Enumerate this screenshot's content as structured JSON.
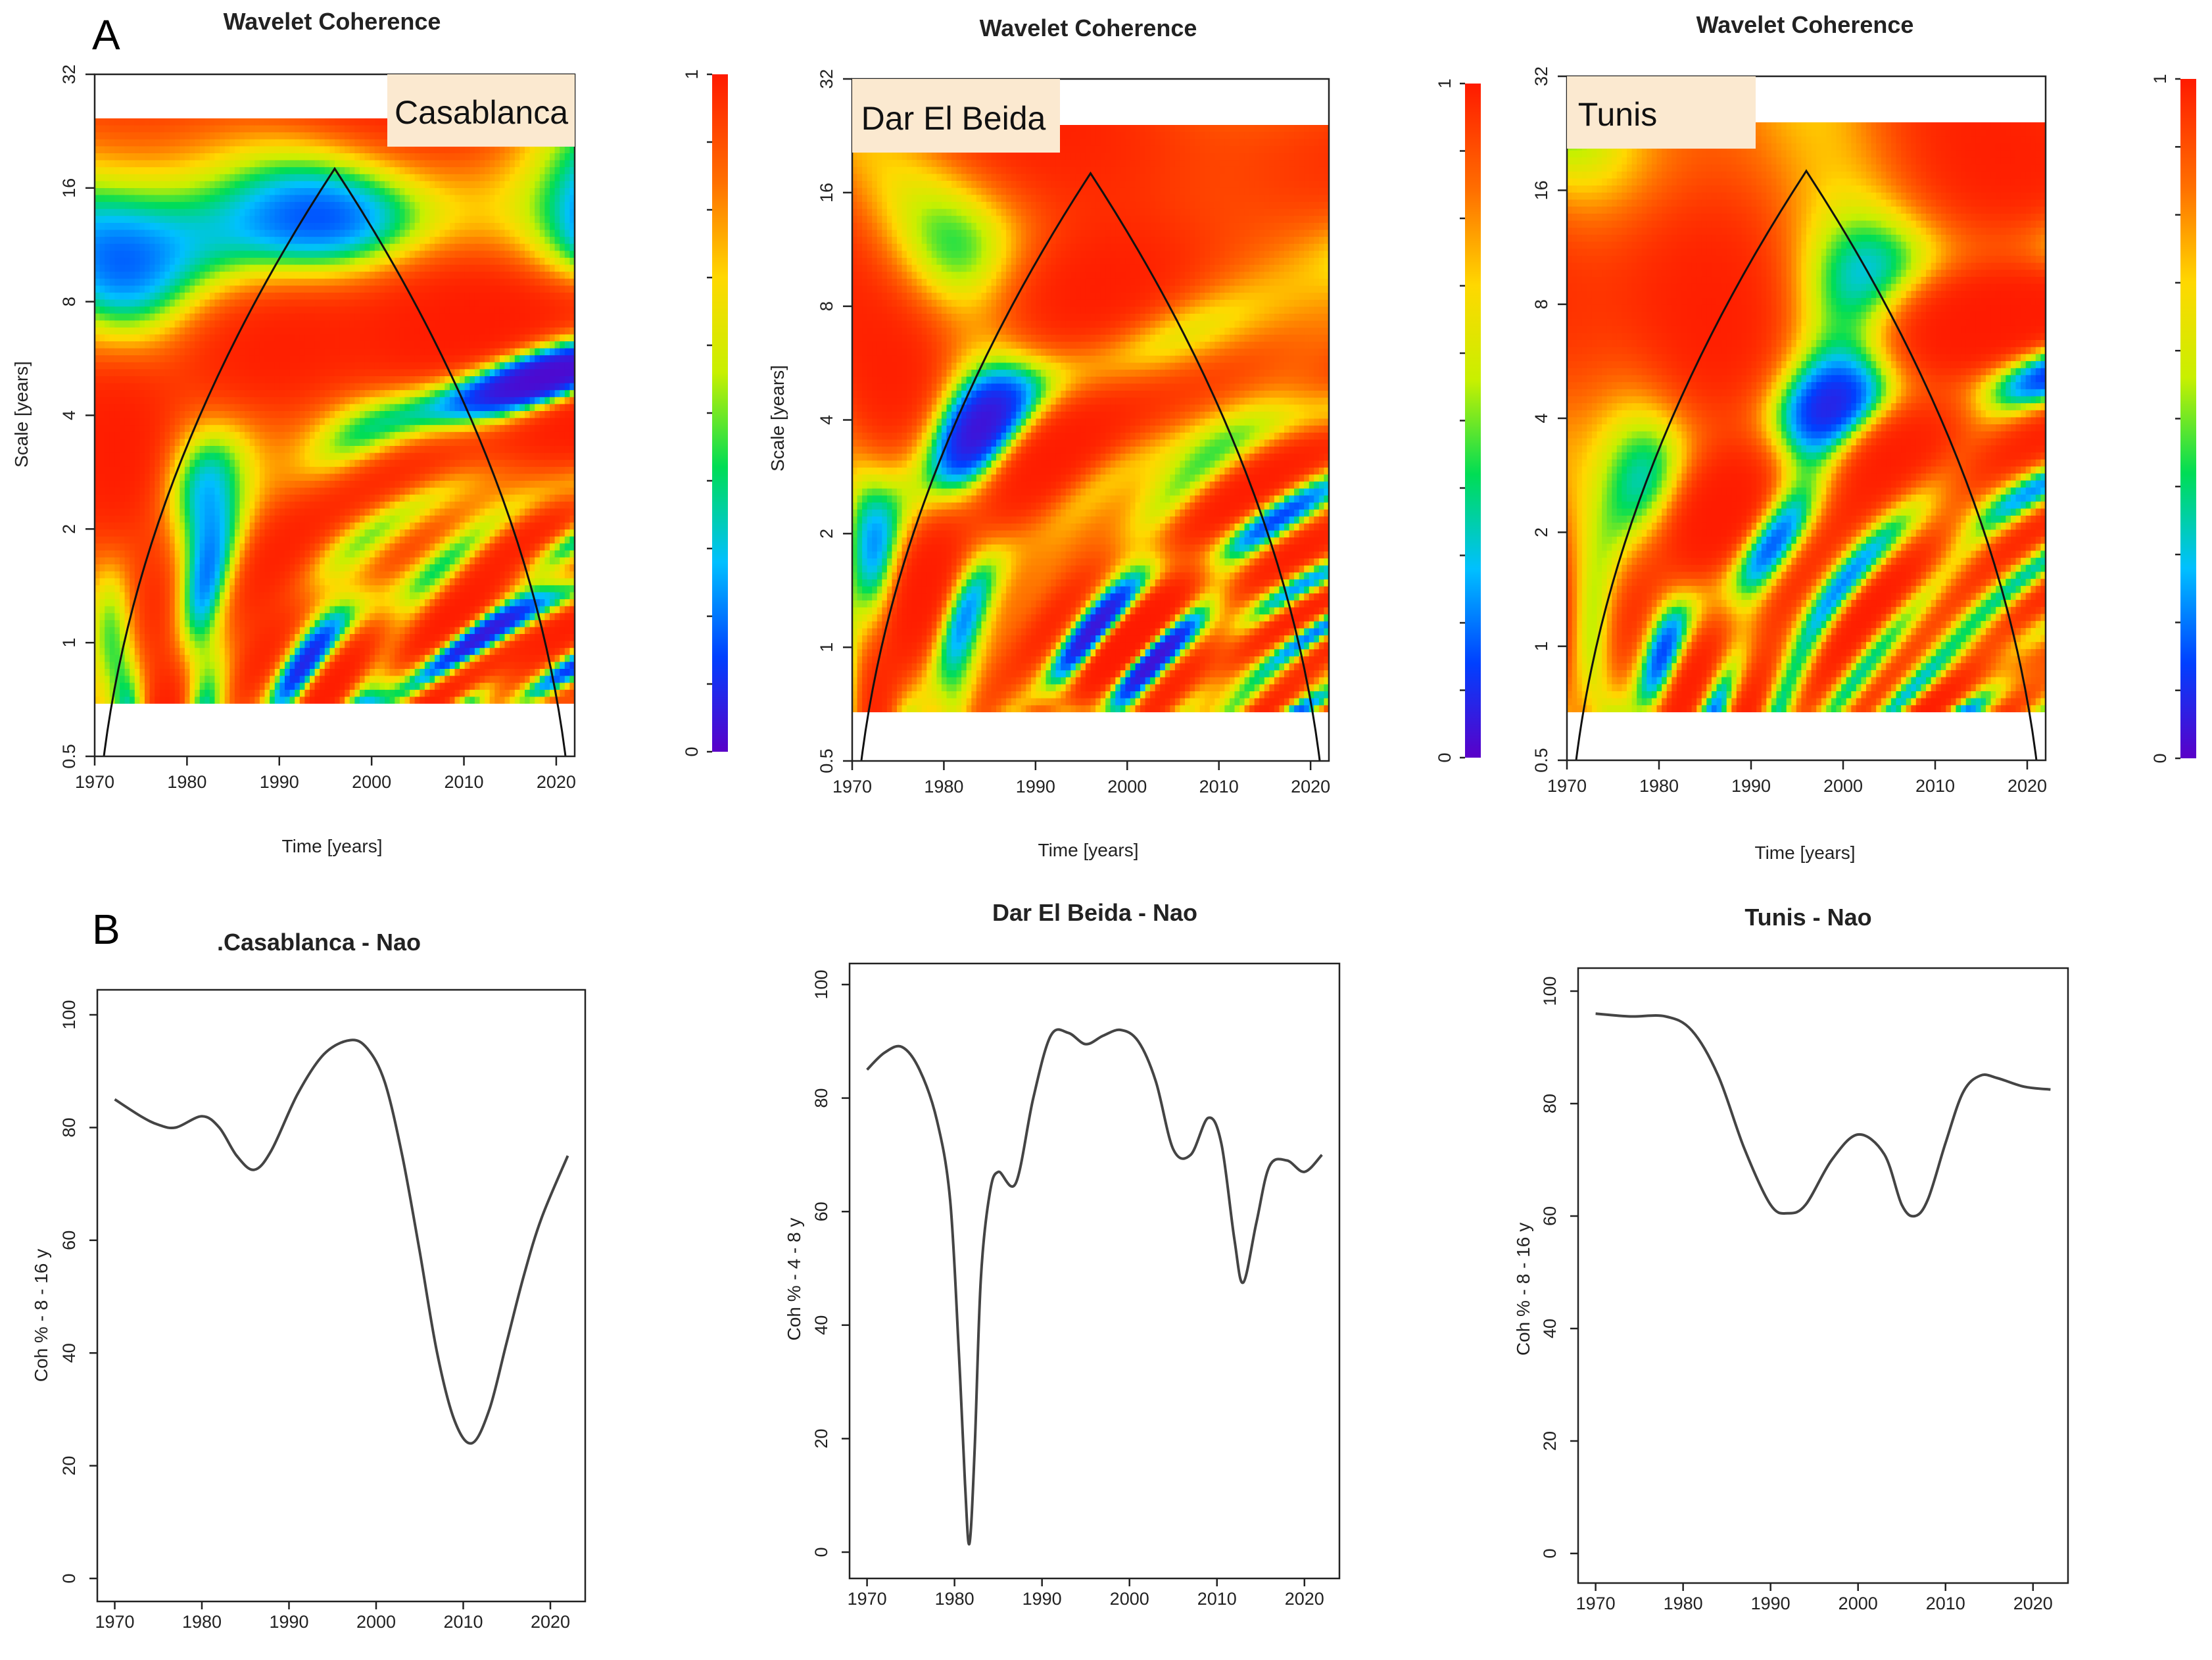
{
  "panel_labels": {
    "a": "A",
    "b": "B"
  },
  "colorscale": [
    "#5a00c8",
    "#0040ff",
    "#00c0ff",
    "#00dd55",
    "#c8f000",
    "#ffd800",
    "#ff7000",
    "#ff1a00"
  ],
  "chart_data": [
    {
      "type": "heatmap",
      "id": "wc1",
      "title": "Wavelet Coherence",
      "station": "Casablanca",
      "xlabel": "Time [years]",
      "ylabel": "Scale [years]",
      "xlim": [
        1970,
        2022
      ],
      "ylim_log2": [
        -1,
        5
      ],
      "x_ticks": [
        1970,
        1980,
        1990,
        2000,
        2010,
        2020
      ],
      "y_ticks": [
        "0.5",
        "1",
        "2",
        "4",
        "8",
        "16",
        "32"
      ],
      "colorbar": {
        "min": 0,
        "max": 1,
        "tick_labels": [
          "0",
          "1"
        ]
      },
      "coi_peak_year": 1996,
      "coi_peak_scale": 18
    },
    {
      "type": "heatmap",
      "id": "wc2",
      "title": "Wavelet Coherence",
      "station": "Dar El Beida",
      "xlabel": "Time [years]",
      "ylabel": "Scale [years]",
      "xlim": [
        1970,
        2022
      ],
      "ylim_log2": [
        -1,
        5
      ],
      "x_ticks": [
        1970,
        1980,
        1990,
        2000,
        2010,
        2020
      ],
      "y_ticks": [
        "0.5",
        "1",
        "2",
        "4",
        "8",
        "16",
        "32"
      ],
      "colorbar": {
        "min": 0,
        "max": 1,
        "tick_labels": [
          "0",
          "1"
        ]
      },
      "coi_peak_year": 1996,
      "coi_peak_scale": 18
    },
    {
      "type": "heatmap",
      "id": "wc3",
      "title": "Wavelet Coherence",
      "station": "Tunis",
      "xlabel": "Time [years]",
      "ylabel": "",
      "xlim": [
        1970,
        2022
      ],
      "ylim_log2": [
        -1,
        5
      ],
      "x_ticks": [
        1970,
        1980,
        1990,
        2000,
        2010,
        2020
      ],
      "y_ticks": [
        "0.5",
        "1",
        "2",
        "4",
        "8",
        "16",
        "32"
      ],
      "colorbar": {
        "min": 0,
        "max": 1,
        "tick_labels": [
          "0",
          "1"
        ]
      },
      "coi_peak_year": 1996,
      "coi_peak_scale": 18
    },
    {
      "type": "line",
      "id": "ln1",
      "title": ".Casablanca - Nao",
      "xlabel": "",
      "ylabel": "Coh % - 8 - 16 y",
      "xlim": [
        1968,
        2024
      ],
      "ylim": [
        0,
        100
      ],
      "x_ticks": [
        1970,
        1980,
        1990,
        2000,
        2010,
        2020
      ],
      "y_ticks": [
        0,
        20,
        40,
        60,
        80,
        100
      ],
      "x": [
        1970,
        1973,
        1975,
        1977,
        1980,
        1982,
        1984,
        1986,
        1988,
        1991,
        1994,
        1997,
        1999,
        2001,
        2003,
        2005,
        2007,
        2009,
        2011,
        2013,
        2015,
        2017,
        2019,
        2022
      ],
      "y": [
        85,
        82,
        80.5,
        80,
        82,
        80,
        75,
        72.5,
        76,
        86,
        93,
        95.5,
        94,
        88,
        75,
        58,
        40,
        28,
        24,
        30,
        42,
        54,
        64,
        75
      ]
    },
    {
      "type": "line",
      "id": "ln2",
      "title": "Dar El Beida - Nao",
      "xlabel": "",
      "ylabel": "Coh % - 4 - 8 y",
      "xlim": [
        1968,
        2024
      ],
      "ylim": [
        0,
        100
      ],
      "x_ticks": [
        1970,
        1980,
        1990,
        2000,
        2010,
        2020
      ],
      "y_ticks": [
        0,
        20,
        40,
        60,
        80,
        100
      ],
      "x": [
        1970,
        1972,
        1974,
        1976,
        1978,
        1979.5,
        1980.5,
        1981.2,
        1981.7,
        1982.3,
        1983,
        1984,
        1985,
        1987,
        1989,
        1991,
        1993,
        1995,
        1997,
        1999,
        2001,
        2003,
        2005,
        2007,
        2009,
        2010.5,
        2012,
        2013,
        2014.5,
        2016,
        2018,
        2020,
        2022
      ],
      "y": [
        85,
        88,
        89,
        85,
        76,
        62,
        35,
        12,
        1.5,
        18,
        48,
        63,
        67,
        65,
        80,
        91,
        91.5,
        89.5,
        91,
        92,
        90,
        83,
        71,
        70,
        76.5,
        72,
        55,
        47.5,
        58,
        68,
        69,
        67,
        70
      ]
    },
    {
      "type": "line",
      "id": "ln3",
      "title": "Tunis - Nao",
      "xlabel": "",
      "ylabel": "Coh % - 8 - 16 y",
      "xlim": [
        1968,
        2024
      ],
      "ylim": [
        0,
        100
      ],
      "x_ticks": [
        1970,
        1980,
        1990,
        2000,
        2010,
        2020
      ],
      "y_ticks": [
        0,
        20,
        40,
        60,
        80,
        100
      ],
      "x": [
        1970,
        1974,
        1978,
        1981,
        1984,
        1987,
        1990,
        1992,
        1994,
        1997,
        2000,
        2003,
        2005,
        2006.5,
        2008,
        2010,
        2012,
        2014,
        2016,
        2019,
        2022
      ],
      "y": [
        96,
        95.5,
        95.5,
        93,
        85,
        72,
        62,
        60.5,
        62,
        70,
        74.5,
        71,
        62,
        60,
        63,
        73,
        82,
        85,
        84.5,
        83,
        82.5
      ]
    }
  ]
}
